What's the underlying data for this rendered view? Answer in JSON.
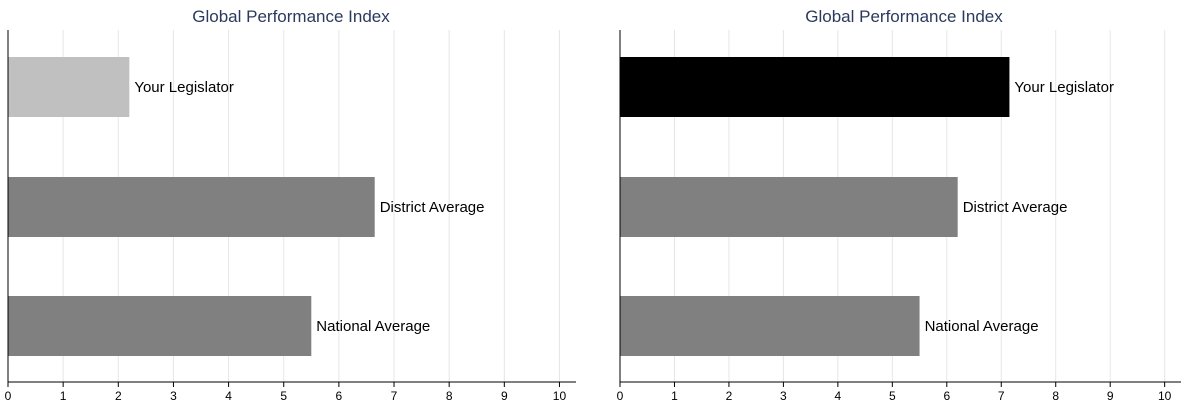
{
  "chart_data": [
    {
      "type": "bar",
      "orientation": "horizontal",
      "title": "Global Performance Index",
      "categories": [
        "Your Legislator",
        "District Average",
        "National Average"
      ],
      "values": [
        2.2,
        6.65,
        5.5
      ],
      "bar_colors": [
        "#c0c0c0",
        "#808080",
        "#808080"
      ],
      "xlim": [
        0,
        10.3
      ],
      "xticks": [
        "0",
        "1",
        "2",
        "3",
        "4",
        "5",
        "6",
        "7",
        "8",
        "9",
        "10"
      ],
      "grid": "vertical",
      "xlabel": "",
      "ylabel": ""
    },
    {
      "type": "bar",
      "orientation": "horizontal",
      "title": "Global Performance Index",
      "categories": [
        "Your Legislator",
        "District Average",
        "National Average"
      ],
      "values": [
        7.15,
        6.2,
        5.5
      ],
      "bar_colors": [
        "#000000",
        "#808080",
        "#808080"
      ],
      "xlim": [
        0,
        10.3
      ],
      "xticks": [
        "0",
        "1",
        "2",
        "3",
        "4",
        "5",
        "6",
        "7",
        "8",
        "9",
        "10"
      ],
      "grid": "vertical",
      "xlabel": "",
      "ylabel": ""
    }
  ]
}
